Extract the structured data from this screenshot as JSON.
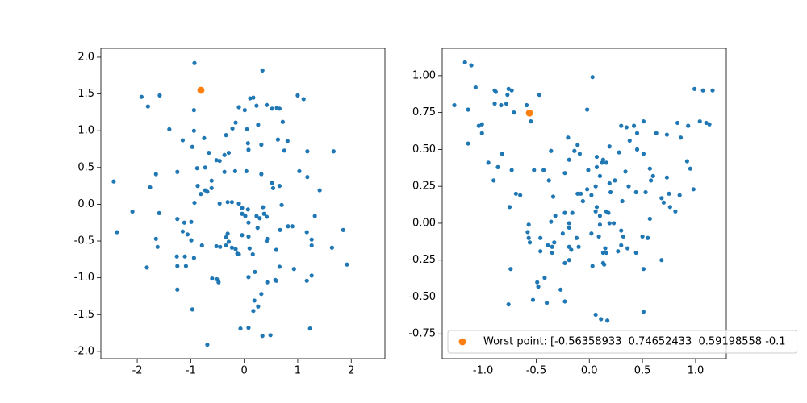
{
  "chart_data": [
    {
      "type": "scatter",
      "xlim": [
        -2.68,
        2.63
      ],
      "ylim": [
        -2.1,
        2.12
      ],
      "xticks": [
        -2,
        -1,
        0,
        1,
        2
      ],
      "yticks": [
        {
          "value": -2,
          "label": "-2.0"
        },
        -1.5,
        {
          "value": -1,
          "label": "-1.0"
        },
        -0.5,
        {
          "value": 0,
          "label": "0.0"
        },
        0.5,
        {
          "value": 1,
          "label": "1.0"
        },
        1.5,
        {
          "value": 2,
          "label": "2.0"
        }
      ],
      "series": [
        {
          "color": "#1f77b4",
          "x": [
            -0.93,
            0.34,
            -1.92,
            -1.58,
            -1.8,
            -0.94,
            0.11,
            0.17,
            -0.1,
            0.01,
            0.23,
            0.42,
            0.61,
            0.52,
            0.66,
            1.0,
            1.11,
            -1.4,
            -0.75,
            -0.94,
            -0.16,
            -0.22,
            -0.34,
            0.05,
            0.26,
            0.72,
            -1.15,
            -0.97,
            -0.37,
            -0.29,
            0.07,
            0.08,
            0.32,
            0.63,
            0.75,
            0.81,
            1.18,
            1.67,
            -0.66,
            -0.46,
            -0.37,
            -1.25,
            -1.65,
            -0.88,
            -0.73,
            -0.52,
            -0.87,
            -0.73,
            -0.69,
            -0.61,
            -0.81,
            -0.61,
            -0.17,
            0.04,
            0.32,
            0.52,
            0.66,
            0.54,
            1.03,
            1.18,
            1.41,
            -1.76,
            -2.44,
            -0.93,
            -2.09,
            -1.59,
            -1.25,
            -1.12,
            -0.99,
            -0.31,
            -0.23,
            -0.1,
            -0.04,
            -0.46,
            0.07,
            -0.04,
            0.02,
            0.35,
            0.37,
            0.23,
            0.42,
            0.29,
            0.7,
            1.32,
            1.85,
            -2.38,
            -1.15,
            -1.06,
            -0.31,
            -0.34,
            -0.29,
            0.08,
            0.08,
            -0.04,
            0.25,
            0.67,
            0.82,
            1.17,
            0.9,
            -0.13,
            0.42,
            0.43,
            0.6,
            1.26,
            1.26,
            1.64,
            -1.62,
            -0.52,
            -0.45,
            -0.34,
            -0.23,
            -0.79,
            -1.11,
            -1.26,
            -1.09,
            -1.25,
            -0.94,
            -0.16,
            -0.1,
            0.1,
            0.16,
            -1.65,
            -0.99,
            0.66,
            0.93,
            1.92,
            -1.82,
            -0.51,
            -0.6,
            -0.48,
            0.08,
            0.2,
            0.6,
            1.17,
            1.26,
            -1.25,
            0.43,
            0.32,
            0.19,
            0.58,
            -0.97,
            0.26,
            0.17,
            0.08,
            0.34,
            0.49,
            1.23,
            -0.07,
            -0.69
          ],
          "values": [
            1.92,
            1.82,
            1.46,
            1.48,
            1.33,
            1.28,
            1.44,
            1.45,
            1.32,
            1.28,
            1.34,
            1.35,
            1.31,
            1.3,
            1.3,
            1.48,
            1.43,
            1.02,
            0.9,
            1.0,
            1.11,
            1.03,
            0.94,
            1.02,
            1.08,
            1.12,
            0.87,
            0.78,
            0.67,
            0.7,
            0.83,
            0.74,
            0.81,
            0.88,
            0.73,
            0.86,
            0.72,
            0.72,
            0.7,
            0.59,
            0.44,
            0.44,
            0.41,
            0.49,
            0.5,
            0.6,
            0.25,
            0.19,
            0.17,
            0.22,
            0.14,
            0.32,
            0.45,
            0.45,
            0.41,
            0.29,
            0.25,
            0.22,
            0.45,
            0.37,
            0.19,
            0.23,
            0.31,
            0.02,
            -0.1,
            -0.12,
            -0.2,
            -0.25,
            -0.24,
            0.03,
            0.03,
            0.01,
            -0.05,
            0.01,
            -0.07,
            -0.13,
            -0.16,
            -0.04,
            -0.13,
            -0.16,
            -0.17,
            -0.19,
            -0.01,
            -0.16,
            -0.35,
            -0.38,
            -0.37,
            -0.41,
            -0.4,
            -0.45,
            -0.51,
            -0.25,
            -0.44,
            -0.42,
            -0.32,
            -0.35,
            -0.3,
            -0.38,
            -0.3,
            -0.67,
            -0.5,
            -0.47,
            -0.62,
            -0.48,
            -0.56,
            -0.59,
            -0.58,
            -0.57,
            -0.58,
            -0.56,
            -0.59,
            -0.56,
            -0.71,
            -0.71,
            -0.84,
            -0.84,
            -0.73,
            -0.61,
            -0.68,
            -0.6,
            -0.68,
            -0.47,
            -0.49,
            -0.85,
            -0.88,
            -0.82,
            -0.86,
            -1.02,
            -1.01,
            -1.06,
            -0.99,
            -0.92,
            -1.04,
            -1.04,
            -0.97,
            -1.16,
            -1.06,
            -1.22,
            -1.31,
            -1.03,
            -1.43,
            -1.39,
            -1.45,
            -1.68,
            -1.79,
            -1.78,
            -1.69,
            -1.69,
            -1.91
          ]
        },
        {
          "color": "#ff7f0e",
          "x": [
            -0.81
          ],
          "values": [
            1.55
          ]
        }
      ]
    },
    {
      "type": "scatter",
      "xlim": [
        -1.384,
        1.289
      ],
      "ylim": [
        -0.918,
        1.185
      ],
      "xticks": [
        {
          "value": -1,
          "label": "-1.0"
        },
        -0.5,
        {
          "value": 0,
          "label": "0.0"
        },
        0.5,
        {
          "value": 1,
          "label": "1.0"
        }
      ],
      "yticks": [
        -0.75,
        {
          "value": -0.5,
          "label": "-0.50"
        },
        -0.25,
        {
          "value": 0,
          "label": "0.00"
        },
        0.25,
        {
          "value": 0.5,
          "label": "0.50"
        },
        0.75,
        {
          "value": 1,
          "label": "1.00"
        }
      ],
      "legend": "lower left",
      "series": [
        {
          "color": "#1f77b4",
          "x": [
            -1.17,
            -1.11,
            -1.27,
            -1.07,
            -1.14,
            -1.01,
            -1.04,
            -1.01,
            -0.95,
            -0.89,
            -0.89,
            -0.88,
            -0.83,
            -0.76,
            -0.77,
            -0.78,
            -0.73,
            -0.71,
            -0.59,
            -0.47,
            -1.14,
            -0.55,
            0.03,
            -0.02,
            -0.82,
            -0.86,
            -0.9,
            -0.73,
            -0.69,
            -0.75,
            -0.65,
            -0.52,
            -0.43,
            -0.38,
            -0.36,
            -0.2,
            -0.14,
            -0.19,
            -0.11,
            -0.09,
            -0.01,
            0.07,
            0.12,
            0.13,
            0.16,
            0.19,
            0.07,
            0.1,
            0.24,
            0.19,
            0.28,
            0.3,
            0.35,
            0.42,
            0.38,
            0.45,
            0.51,
            0.45,
            0.34,
            0.51,
            0.63,
            0.73,
            0.57,
            0.6,
            0.58,
            0.73,
            0.75,
            0.53,
            0.44,
            0.31,
            0.37,
            0.06,
            -0.02,
            -0.11,
            -0.08,
            -0.06,
            -0.23,
            -0.34,
            -0.36,
            -0.32,
            -0.19,
            -0.19,
            -0.19,
            -0.17,
            -0.23,
            -0.35,
            -0.33,
            -0.39,
            -0.35,
            -0.46,
            -0.57,
            -0.58,
            -0.57,
            -0.56,
            -0.46,
            -0.25,
            -0.12,
            -0.1,
            0.09,
            0.13,
            0.15,
            0.16,
            0.13,
            0.18,
            0.19,
            0.23,
            0.3,
            0.3,
            0.27,
            0.32,
            0.1,
            0.02,
            0.07,
            -0.16,
            -0.23,
            0.02,
            0.06,
            0.1,
            0.16,
            0.2,
            0.68,
            0.81,
            0.85,
            0.7,
            0.76,
            0.92,
            0.95,
            0.98,
            0.83,
            0.86,
            0.93,
            0.99,
            1.07,
            1.04,
            1.1,
            1.13,
            1.16,
            0.57,
            0.55,
            0.68,
            0.51,
            0.51,
            -0.27,
            -0.23,
            -0.42,
            -0.49,
            -0.74,
            -0.76,
            -0.53,
            -0.4,
            -0.48,
            -0.19,
            0.06,
            0.11,
            0.17,
            0.03,
            0.14,
            0.44,
            0.36,
            0.5
          ],
          "values": [
            1.09,
            1.07,
            0.8,
            0.92,
            0.77,
            0.67,
            0.66,
            0.61,
            0.41,
            0.81,
            0.9,
            0.89,
            0.8,
            0.91,
            0.87,
            0.81,
            0.9,
            0.75,
            0.8,
            0.87,
            0.54,
            0.69,
            0.99,
            0.77,
            0.47,
            0.38,
            0.29,
            0.36,
            0.2,
            0.11,
            0.19,
            0.36,
            0.36,
            0.29,
            0.49,
            0.58,
            0.49,
            0.43,
            0.53,
            0.47,
            0.36,
            0.45,
            0.41,
            0.43,
            0.41,
            0.52,
            0.38,
            0.32,
            0.29,
            0.27,
            0.48,
            0.66,
            0.65,
            0.66,
            0.56,
            0.5,
            0.69,
            0.61,
            0.35,
            0.47,
            0.61,
            0.6,
            0.37,
            0.32,
            0.29,
            0.31,
            0.2,
            0.21,
            0.21,
            0.15,
            0.25,
            0.25,
            0.23,
            0.2,
            0.2,
            0.15,
            0.34,
            0.18,
            0.01,
            0.05,
            0.0,
            -0.03,
            -0.16,
            -0.18,
            -0.27,
            -0.16,
            -0.13,
            -0.15,
            -0.2,
            -0.19,
            -0.01,
            -0.06,
            -0.1,
            -0.13,
            -0.1,
            -0.07,
            -0.1,
            -0.16,
            -0.09,
            -0.2,
            -0.17,
            -0.2,
            -0.27,
            0.07,
            0.0,
            0.0,
            -0.05,
            -0.15,
            -0.19,
            -0.09,
            -0.01,
            -0.07,
            0.11,
            0.07,
            0.07,
            0.19,
            0.08,
            0.05,
            0.08,
            0.21,
            0.17,
            0.08,
            0.19,
            0.14,
            0.11,
            0.42,
            0.37,
            0.23,
            0.68,
            0.58,
            0.66,
            0.91,
            0.9,
            0.69,
            0.68,
            0.67,
            0.9,
            0.03,
            -0.1,
            -0.25,
            -0.31,
            -0.6,
            -0.45,
            -0.53,
            -0.37,
            -0.4,
            -0.31,
            -0.55,
            -0.52,
            -0.54,
            -0.43,
            -0.25,
            -0.62,
            -0.65,
            -0.66,
            -0.29,
            -0.28,
            -0.2,
            -0.17,
            -0.09
          ]
        },
        {
          "name": "Worst point: [-0.56358933  0.74652433  0.59198558 -0.1",
          "color": "#ff7f0e",
          "x": [
            -0.56358933
          ],
          "values": [
            0.74652433
          ]
        }
      ]
    }
  ]
}
